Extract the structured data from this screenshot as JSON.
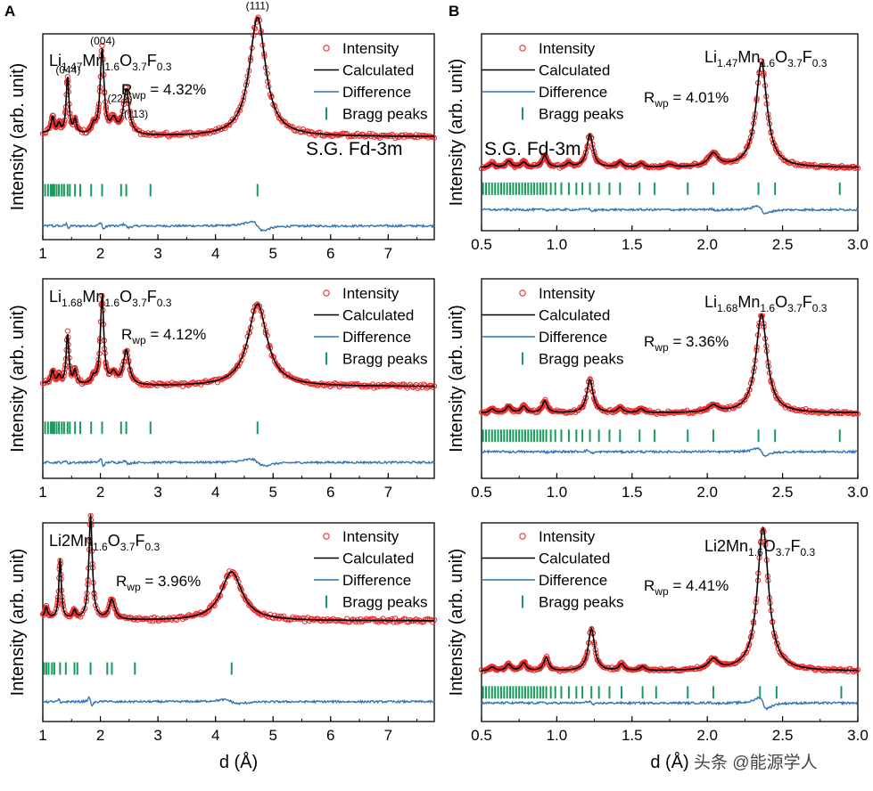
{
  "colors": {
    "intensity": "#ee2a2a",
    "calculated": "#000000",
    "difference": "#2f74b8",
    "bragg": "#169c5a"
  },
  "panel_labels": {
    "a": "A",
    "b": "B"
  },
  "watermark": "头条 @能源学人",
  "chart_data": [
    {
      "id": "A1",
      "type": "line",
      "title": "Li1.47Mn1.6O3.7F0.3",
      "composition": [
        [
          "Li",
          ""
        ],
        [
          "1.47",
          "sub"
        ],
        [
          "Mn",
          ""
        ],
        [
          "1.6",
          "sub"
        ],
        [
          "O",
          ""
        ],
        [
          "3.7",
          "sub"
        ],
        [
          "F",
          ""
        ],
        [
          "0.3",
          "sub"
        ]
      ],
      "rwp_value": "= 4.32%",
      "space_group": "S.G. Fd-3m",
      "xlabel": "",
      "ylabel": "Intensity (arb. unit)",
      "xlim": [
        1,
        7.8
      ],
      "ylim": [
        0,
        1.5
      ],
      "xticks": [
        1,
        2,
        3,
        4,
        5,
        6,
        7
      ],
      "legend": [
        "Intensity",
        "Calculated",
        "Difference",
        "Bragg peaks"
      ],
      "background": 0.75,
      "background_slope": 0.025,
      "peaks": [
        [
          1.17,
          0.12,
          0.03
        ],
        [
          1.28,
          0.07,
          0.03
        ],
        [
          1.43,
          0.42,
          0.028
        ],
        [
          1.56,
          0.1,
          0.03
        ],
        [
          1.88,
          0.06,
          0.04
        ],
        [
          2.03,
          0.62,
          0.04
        ],
        [
          2.23,
          0.1,
          0.06
        ],
        [
          2.45,
          0.33,
          0.06
        ],
        [
          4.73,
          0.87,
          0.17
        ]
      ],
      "peak_labels": [
        {
          "x": 1.44,
          "text": "(044)"
        },
        {
          "x": 2.04,
          "text": "(004)"
        },
        {
          "x": 2.34,
          "text": "(222)"
        },
        {
          "x": 2.62,
          "text": "(113)"
        },
        {
          "x": 4.73,
          "text": "(111)"
        }
      ],
      "bragg_positions": [
        1.04,
        1.09,
        1.14,
        1.17,
        1.2,
        1.24,
        1.28,
        1.33,
        1.37,
        1.43,
        1.47,
        1.56,
        1.65,
        1.84,
        2.03,
        2.36,
        2.45,
        2.87,
        4.73
      ],
      "bragg_level": 0.36,
      "difference_level": 0.1
    },
    {
      "id": "A2",
      "type": "line",
      "title": "Li1.68Mn1.6O3.7F0.3",
      "composition": [
        [
          "Li",
          ""
        ],
        [
          "1.68",
          "sub"
        ],
        [
          "Mn",
          ""
        ],
        [
          "1.6",
          "sub"
        ],
        [
          "O",
          ""
        ],
        [
          "3.7",
          "sub"
        ],
        [
          "F",
          ""
        ],
        [
          "0.3",
          "sub"
        ]
      ],
      "rwp_value": "= 4.12%",
      "space_group": "",
      "xlabel": "",
      "ylabel": "Intensity (arb. unit)",
      "xlim": [
        1,
        7.8
      ],
      "ylim": [
        0,
        1.5
      ],
      "xticks": [
        1,
        2,
        3,
        4,
        5,
        6,
        7
      ],
      "legend": [
        "Intensity",
        "Calculated",
        "Difference",
        "Bragg peaks"
      ],
      "background": 0.69,
      "background_slope": 0.02,
      "peaks": [
        [
          1.17,
          0.1,
          0.03
        ],
        [
          1.28,
          0.06,
          0.03
        ],
        [
          1.43,
          0.38,
          0.028
        ],
        [
          1.56,
          0.1,
          0.03
        ],
        [
          1.88,
          0.05,
          0.04
        ],
        [
          2.03,
          0.67,
          0.035
        ],
        [
          2.23,
          0.08,
          0.06
        ],
        [
          2.45,
          0.26,
          0.06
        ],
        [
          4.73,
          0.62,
          0.2
        ]
      ],
      "peak_labels": [],
      "bragg_positions": [
        1.04,
        1.09,
        1.14,
        1.17,
        1.2,
        1.24,
        1.28,
        1.33,
        1.37,
        1.43,
        1.47,
        1.56,
        1.65,
        1.84,
        2.03,
        2.36,
        2.45,
        2.87,
        4.73
      ],
      "bragg_level": 0.38,
      "difference_level": 0.12
    },
    {
      "id": "A3",
      "type": "line",
      "title": "Li2Mn1.6O3.7F0.3",
      "composition": [
        [
          "Li",
          ""
        ],
        [
          "2",
          ""
        ],
        [
          "Mn",
          ""
        ],
        [
          "1.6",
          "sub"
        ],
        [
          "O",
          ""
        ],
        [
          "3.7",
          "sub"
        ],
        [
          "F",
          ""
        ],
        [
          "0.3",
          "sub"
        ]
      ],
      "rwp_value": "= 3.96%",
      "space_group": "",
      "xlabel": "d (Å)",
      "ylabel": "Intensity (arb. unit)",
      "xlim": [
        1,
        7.8
      ],
      "ylim": [
        0,
        1.5
      ],
      "xticks": [
        1,
        2,
        3,
        4,
        5,
        6,
        7
      ],
      "legend": [
        "Intensity",
        "Calculated",
        "Difference",
        "Bragg peaks"
      ],
      "background": 0.76,
      "background_slope": 0.02,
      "peaks": [
        [
          1.06,
          0.08,
          0.03
        ],
        [
          1.3,
          0.45,
          0.025
        ],
        [
          1.55,
          0.06,
          0.03
        ],
        [
          1.83,
          0.79,
          0.035
        ],
        [
          2.2,
          0.15,
          0.06
        ],
        [
          4.28,
          0.37,
          0.22
        ]
      ],
      "peak_labels": [],
      "bragg_positions": [
        1.02,
        1.06,
        1.1,
        1.16,
        1.2,
        1.3,
        1.4,
        1.55,
        1.6,
        1.83,
        2.12,
        2.2,
        2.6,
        4.28
      ],
      "bragg_level": 0.4,
      "difference_level": 0.15
    },
    {
      "id": "B1",
      "type": "line",
      "title": "Li1.47Mn1.6O3.7F0.3",
      "composition": [
        [
          "Li",
          ""
        ],
        [
          "1.47",
          "sub"
        ],
        [
          "Mn",
          ""
        ],
        [
          "1.6",
          "sub"
        ],
        [
          "O",
          ""
        ],
        [
          "3.7",
          "sub"
        ],
        [
          "F",
          ""
        ],
        [
          "0.3",
          "sub"
        ]
      ],
      "rwp_value": "= 4.01%",
      "space_group": "S.G. Fd-3m",
      "xlabel": "",
      "ylabel": "Intensity (arb. unit)",
      "xlim": [
        0.5,
        3.0
      ],
      "ylim": [
        0,
        1.5
      ],
      "xticks": [
        0.5,
        1.0,
        1.5,
        2.0,
        2.5,
        3.0
      ],
      "legend": [
        "Intensity",
        "Calculated",
        "Difference",
        "Bragg peaks"
      ],
      "background": 0.48,
      "background_slope": 0.0,
      "peaks": [
        [
          0.57,
          0.03,
          0.02
        ],
        [
          0.68,
          0.05,
          0.02
        ],
        [
          0.78,
          0.04,
          0.02
        ],
        [
          0.92,
          0.09,
          0.02
        ],
        [
          1.08,
          0.03,
          0.02
        ],
        [
          1.22,
          0.25,
          0.025
        ],
        [
          1.42,
          0.04,
          0.02
        ],
        [
          1.56,
          0.03,
          0.02
        ],
        [
          1.75,
          0.02,
          0.03
        ],
        [
          2.04,
          0.1,
          0.04
        ],
        [
          2.36,
          0.8,
          0.045
        ]
      ],
      "peak_labels": [],
      "bragg_positions": [
        0.51,
        0.53,
        0.55,
        0.57,
        0.59,
        0.61,
        0.63,
        0.65,
        0.67,
        0.69,
        0.71,
        0.73,
        0.75,
        0.77,
        0.79,
        0.81,
        0.83,
        0.85,
        0.87,
        0.89,
        0.91,
        0.93,
        0.96,
        0.99,
        1.03,
        1.08,
        1.13,
        1.17,
        1.22,
        1.28,
        1.35,
        1.42,
        1.55,
        1.65,
        1.87,
        2.04,
        2.34,
        2.45,
        2.88
      ],
      "bragg_level": 0.32,
      "difference_level": 0.16
    },
    {
      "id": "B2",
      "type": "line",
      "title": "Li1.68Mn1.6O3.7F0.3",
      "composition": [
        [
          "Li",
          ""
        ],
        [
          "1.68",
          "sub"
        ],
        [
          "Mn",
          ""
        ],
        [
          "1.6",
          "sub"
        ],
        [
          "O",
          ""
        ],
        [
          "3.7",
          "sub"
        ],
        [
          "F",
          ""
        ],
        [
          "0.3",
          "sub"
        ]
      ],
      "rwp_value": "= 3.36%",
      "space_group": "",
      "xlabel": "",
      "ylabel": "Intensity (arb. unit)",
      "xlim": [
        0.5,
        3.0
      ],
      "ylim": [
        0,
        1.5
      ],
      "xticks": [
        0.5,
        1.0,
        1.5,
        2.0,
        2.5,
        3.0
      ],
      "legend": [
        "Intensity",
        "Calculated",
        "Difference",
        "Bragg peaks"
      ],
      "background": 0.49,
      "background_slope": 0.0,
      "peaks": [
        [
          0.57,
          0.03,
          0.02
        ],
        [
          0.68,
          0.05,
          0.02
        ],
        [
          0.78,
          0.05,
          0.02
        ],
        [
          0.92,
          0.09,
          0.02
        ],
        [
          1.22,
          0.25,
          0.025
        ],
        [
          1.42,
          0.04,
          0.02
        ],
        [
          1.56,
          0.03,
          0.02
        ],
        [
          2.04,
          0.05,
          0.04
        ],
        [
          2.36,
          0.74,
          0.045
        ]
      ],
      "peak_labels": [],
      "bragg_positions": [
        0.51,
        0.53,
        0.55,
        0.57,
        0.59,
        0.61,
        0.63,
        0.65,
        0.67,
        0.69,
        0.71,
        0.73,
        0.75,
        0.77,
        0.79,
        0.81,
        0.83,
        0.85,
        0.87,
        0.89,
        0.91,
        0.93,
        0.96,
        0.99,
        1.03,
        1.08,
        1.13,
        1.17,
        1.22,
        1.28,
        1.35,
        1.42,
        1.55,
        1.65,
        1.87,
        2.04,
        2.34,
        2.45,
        2.88
      ],
      "bragg_level": 0.32,
      "difference_level": 0.2
    },
    {
      "id": "B3",
      "type": "line",
      "title": "Li2Mn1.6O3.7F0.3",
      "composition": [
        [
          "Li",
          ""
        ],
        [
          "2",
          ""
        ],
        [
          "Mn",
          ""
        ],
        [
          "1.6",
          "sub"
        ],
        [
          "O",
          ""
        ],
        [
          "3.7",
          "sub"
        ],
        [
          "F",
          ""
        ],
        [
          "0.3",
          "sub"
        ]
      ],
      "rwp_value": "= 4.41%",
      "space_group": "",
      "xlabel": "d (Å)",
      "ylabel": "Intensity (arb. unit)",
      "xlim": [
        0.5,
        3.0
      ],
      "ylim": [
        0,
        1.5
      ],
      "xticks": [
        0.5,
        1.0,
        1.5,
        2.0,
        2.5,
        3.0
      ],
      "legend": [
        "Intensity",
        "Calculated",
        "Difference",
        "Bragg peaks"
      ],
      "background": 0.38,
      "background_slope": 0.0,
      "peaks": [
        [
          0.57,
          0.03,
          0.02
        ],
        [
          0.68,
          0.05,
          0.02
        ],
        [
          0.78,
          0.06,
          0.02
        ],
        [
          0.93,
          0.1,
          0.02
        ],
        [
          1.23,
          0.32,
          0.025
        ],
        [
          1.43,
          0.05,
          0.02
        ],
        [
          1.57,
          0.03,
          0.02
        ],
        [
          2.04,
          0.08,
          0.04
        ],
        [
          2.37,
          1.08,
          0.045
        ]
      ],
      "peak_labels": [],
      "bragg_positions": [
        0.51,
        0.53,
        0.55,
        0.57,
        0.59,
        0.61,
        0.63,
        0.65,
        0.67,
        0.69,
        0.71,
        0.73,
        0.75,
        0.77,
        0.79,
        0.81,
        0.83,
        0.85,
        0.87,
        0.89,
        0.91,
        0.93,
        0.96,
        0.99,
        1.03,
        1.08,
        1.13,
        1.17,
        1.23,
        1.28,
        1.35,
        1.43,
        1.57,
        1.66,
        1.87,
        2.04,
        2.35,
        2.46,
        2.89
      ],
      "bragg_level": 0.22,
      "difference_level": 0.14
    }
  ]
}
